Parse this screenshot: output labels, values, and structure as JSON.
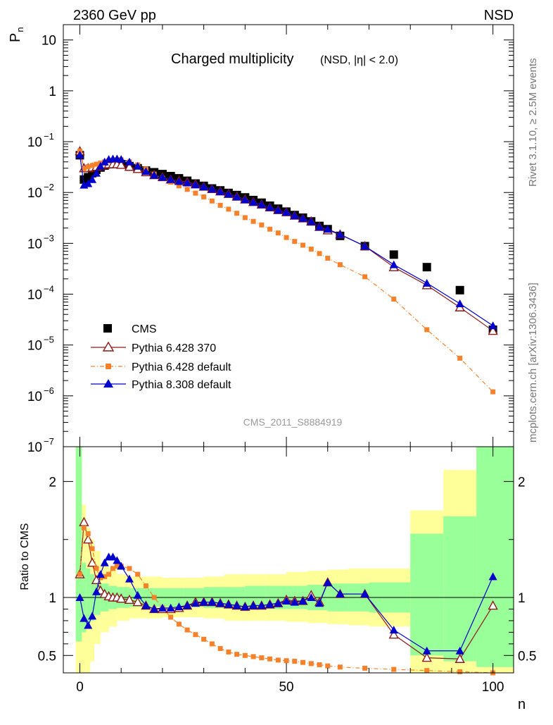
{
  "header": {
    "left": "2360 GeV pp",
    "right": "NSD"
  },
  "side_labels": {
    "rivet": "Rivet 3.1.10, ≥ 2.5M events",
    "mcplots": "mcplots.cern.ch [arXiv:1306.3436]"
  },
  "watermark": "CMS_2011_S8884919",
  "chart_data": {
    "type": "scatter",
    "title_main": "Charged multiplicity",
    "title_sub": "(NSD, |η| < 2.0)",
    "xlabel": "n",
    "top": {
      "ylabel": "P_n",
      "yscale": "log",
      "ylim": [
        1e-07,
        20
      ],
      "xlim": [
        -4,
        105
      ]
    },
    "bottom": {
      "ylabel": "Ratio to CMS",
      "ylim": [
        0.35,
        2.3
      ],
      "xlim": [
        -4,
        105
      ]
    },
    "legend": [
      "CMS",
      "Pythia 6.428 370",
      "Pythia 6.428 default",
      "Pythia 8.308 default"
    ],
    "colors": {
      "cms": "#000000",
      "p6_370": "#8b1a1a",
      "p6_def": "#f5822a",
      "p8": "#0000cc",
      "band_inner": "#99ff99",
      "band_outer": "#ffff99"
    },
    "x_ticks": [
      0,
      50,
      100
    ],
    "series": [
      {
        "name": "CMS",
        "x": [
          0,
          1,
          2,
          3,
          4,
          5,
          6,
          7,
          8,
          9,
          10,
          12,
          14,
          16,
          18,
          20,
          22,
          24,
          26,
          28,
          30,
          32,
          34,
          36,
          38,
          40,
          42,
          44,
          46,
          48,
          50,
          52,
          54,
          56,
          58,
          60,
          63,
          69,
          76,
          84,
          92,
          100
        ],
        "y": [
          0.054,
          0.018,
          0.02,
          0.024,
          0.028,
          0.031,
          0.034,
          0.036,
          0.037,
          0.037,
          0.036,
          0.033,
          0.03,
          0.027,
          0.025,
          0.023,
          0.021,
          0.019,
          0.017,
          0.015,
          0.0135,
          0.012,
          0.011,
          0.0098,
          0.0089,
          0.008,
          0.0071,
          0.0063,
          0.0055,
          0.0048,
          0.0042,
          0.0036,
          0.0032,
          0.0027,
          0.0022,
          0.0019,
          0.0014,
          0.00088,
          0.0006,
          0.00034,
          0.00012,
          2e-05
        ]
      },
      {
        "name": "Pythia 6.428 370",
        "x": [
          0,
          1,
          2,
          3,
          4,
          5,
          6,
          7,
          8,
          9,
          10,
          12,
          14,
          16,
          18,
          20,
          22,
          24,
          26,
          28,
          30,
          32,
          34,
          36,
          38,
          40,
          42,
          44,
          46,
          48,
          50,
          52,
          54,
          56,
          58,
          60,
          63,
          69,
          76,
          84,
          92,
          100
        ],
        "y": [
          0.065,
          0.03,
          0.03,
          0.031,
          0.032,
          0.033,
          0.035,
          0.036,
          0.036,
          0.036,
          0.035,
          0.032,
          0.029,
          0.025,
          0.022,
          0.02,
          0.018,
          0.017,
          0.016,
          0.0145,
          0.013,
          0.0117,
          0.0105,
          0.0094,
          0.0083,
          0.0073,
          0.0065,
          0.0058,
          0.0051,
          0.0045,
          0.0041,
          0.0035,
          0.0031,
          0.0027,
          0.0021,
          0.0018,
          0.0015,
          0.00088,
          0.00034,
          0.00015,
          5.5e-05,
          1.9e-05
        ],
        "ratio": [
          1.2,
          1.65,
          1.5,
          1.3,
          1.15,
          1.06,
          1.03,
          1.01,
          1.0,
          1.0,
          0.99,
          0.98,
          0.96,
          0.93,
          0.9,
          0.9,
          0.9,
          0.91,
          0.93,
          0.96,
          0.96,
          0.96,
          0.95,
          0.94,
          0.93,
          0.92,
          0.93,
          0.93,
          0.94,
          0.95,
          0.98,
          0.97,
          0.97,
          1.02,
          0.96,
          1.13,
          1.03,
          1.03,
          0.68,
          0.48,
          0.47,
          0.93
        ]
      },
      {
        "name": "Pythia 6.428 default",
        "x": [
          0,
          1,
          2,
          3,
          4,
          5,
          6,
          7,
          8,
          9,
          10,
          12,
          14,
          16,
          18,
          20,
          22,
          24,
          26,
          28,
          30,
          32,
          34,
          36,
          38,
          40,
          42,
          44,
          46,
          48,
          50,
          52,
          54,
          56,
          58,
          60,
          63,
          69,
          76,
          84,
          92,
          100
        ],
        "y": [
          0.065,
          0.029,
          0.032,
          0.034,
          0.036,
          0.038,
          0.04,
          0.042,
          0.043,
          0.044,
          0.044,
          0.04,
          0.035,
          0.029,
          0.023,
          0.019,
          0.016,
          0.0135,
          0.0115,
          0.0097,
          0.0082,
          0.0068,
          0.0056,
          0.0047,
          0.0039,
          0.0032,
          0.0027,
          0.0023,
          0.0019,
          0.0016,
          0.0013,
          0.00109,
          0.00092,
          0.00077,
          0.00063,
          0.00051,
          0.00038,
          0.00022,
          8e-05,
          2e-05,
          5.5e-06,
          1.2e-06
        ],
        "ratio": [
          1.2,
          1.6,
          1.55,
          1.42,
          1.25,
          1.17,
          1.18,
          1.2,
          1.25,
          1.27,
          1.27,
          1.25,
          1.2,
          1.1,
          1.0,
          0.91,
          0.83,
          0.77,
          0.72,
          0.68,
          0.64,
          0.6,
          0.56,
          0.53,
          0.51,
          0.5,
          0.49,
          0.48,
          0.47,
          0.46,
          0.455,
          0.45,
          0.44,
          0.43,
          0.42,
          0.41,
          0.4,
          0.39,
          0.38,
          0.37,
          0.36,
          0.35
        ]
      },
      {
        "name": "Pythia 8.308 default",
        "x": [
          0,
          1,
          2,
          3,
          4,
          5,
          6,
          7,
          8,
          9,
          10,
          12,
          14,
          16,
          18,
          20,
          22,
          24,
          26,
          28,
          30,
          32,
          34,
          36,
          38,
          40,
          42,
          44,
          46,
          48,
          50,
          52,
          54,
          56,
          58,
          60,
          63,
          69,
          76,
          84,
          92,
          100
        ],
        "y": [
          0.055,
          0.014,
          0.015,
          0.018,
          0.024,
          0.033,
          0.04,
          0.045,
          0.046,
          0.046,
          0.045,
          0.04,
          0.033,
          0.026,
          0.022,
          0.02,
          0.018,
          0.0165,
          0.0155,
          0.0142,
          0.013,
          0.0117,
          0.0104,
          0.0093,
          0.0082,
          0.0072,
          0.0065,
          0.0058,
          0.0051,
          0.0045,
          0.0041,
          0.0035,
          0.0031,
          0.0027,
          0.0021,
          0.0019,
          0.0015,
          0.00088,
          0.00038,
          0.000165,
          6.5e-05,
          2.4e-05
        ],
        "ratio": [
          1.0,
          0.82,
          0.76,
          0.84,
          1.05,
          1.2,
          1.3,
          1.35,
          1.35,
          1.32,
          1.27,
          1.16,
          1.02,
          0.93,
          0.9,
          0.91,
          0.91,
          0.92,
          0.93,
          0.95,
          0.96,
          0.96,
          0.95,
          0.94,
          0.93,
          0.92,
          0.93,
          0.93,
          0.94,
          0.95,
          0.97,
          0.96,
          0.97,
          1.0,
          0.95,
          1.13,
          1.03,
          1.03,
          0.72,
          0.54,
          0.54,
          1.18
        ]
      }
    ],
    "bands": {
      "edges": [
        -1,
        0.5,
        1.5,
        2.5,
        3.5,
        5,
        7,
        9,
        12,
        16,
        20,
        25,
        30,
        35,
        40,
        45,
        50,
        55,
        60,
        65,
        70,
        80,
        88,
        96,
        105
      ],
      "inner": [
        [
          0.62,
          2.3
        ],
        [
          0.7,
          1.3
        ],
        [
          0.75,
          1.25
        ],
        [
          0.8,
          1.2
        ],
        [
          0.85,
          1.15
        ],
        [
          0.88,
          1.12
        ],
        [
          0.9,
          1.1
        ],
        [
          0.91,
          1.09
        ],
        [
          0.92,
          1.08
        ],
        [
          0.92,
          1.08
        ],
        [
          0.92,
          1.08
        ],
        [
          0.92,
          1.08
        ],
        [
          0.91,
          1.09
        ],
        [
          0.91,
          1.09
        ],
        [
          0.9,
          1.1
        ],
        [
          0.9,
          1.1
        ],
        [
          0.9,
          1.1
        ],
        [
          0.89,
          1.11
        ],
        [
          0.88,
          1.12
        ],
        [
          0.88,
          1.12
        ],
        [
          0.87,
          1.13
        ],
        [
          0.5,
          1.55
        ],
        [
          0.45,
          1.7
        ],
        [
          0.4,
          2.3
        ]
      ],
      "outer": [
        [
          0.35,
          2.3
        ],
        [
          0.35,
          1.8
        ],
        [
          0.35,
          1.6
        ],
        [
          0.45,
          1.5
        ],
        [
          0.6,
          1.4
        ],
        [
          0.7,
          1.3
        ],
        [
          0.75,
          1.25
        ],
        [
          0.8,
          1.2
        ],
        [
          0.82,
          1.18
        ],
        [
          0.82,
          1.18
        ],
        [
          0.83,
          1.17
        ],
        [
          0.83,
          1.17
        ],
        [
          0.82,
          1.18
        ],
        [
          0.8,
          1.2
        ],
        [
          0.8,
          1.2
        ],
        [
          0.8,
          1.2
        ],
        [
          0.79,
          1.22
        ],
        [
          0.78,
          1.23
        ],
        [
          0.77,
          1.24
        ],
        [
          0.76,
          1.25
        ],
        [
          0.75,
          1.25
        ],
        [
          0.35,
          1.75
        ],
        [
          0.35,
          2.1
        ],
        [
          0.35,
          2.3
        ]
      ]
    }
  }
}
